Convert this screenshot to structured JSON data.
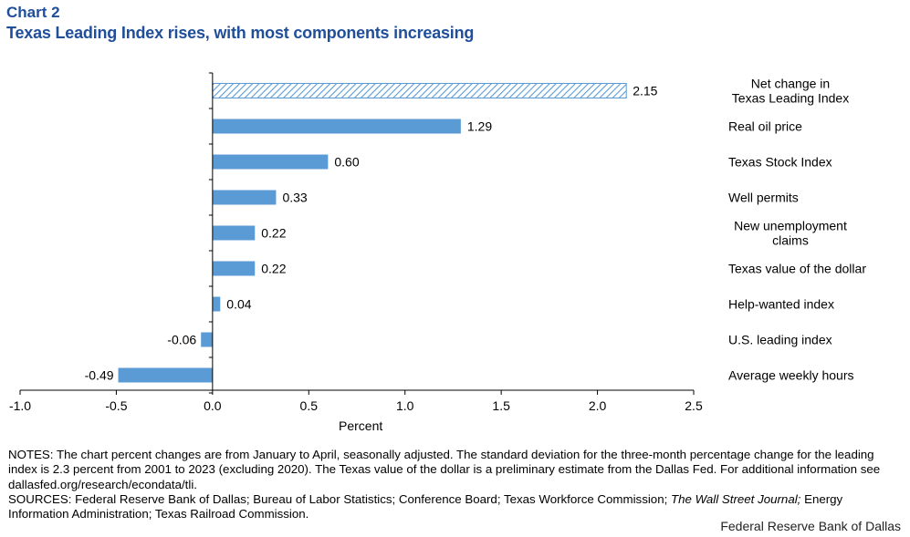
{
  "header": {
    "chart_label": "Chart 2",
    "title": "Texas Leading Index rises, with most components increasing"
  },
  "chart_data": {
    "type": "bar",
    "orientation": "horizontal",
    "categories": [
      "Net change in Texas Leading Index",
      "Real oil price",
      "Texas Stock Index",
      "Well permits",
      "New unemployment claims",
      "Texas value of the dollar",
      "Help-wanted index",
      "U.S. leading index",
      "Average weekly hours"
    ],
    "category_lines": [
      [
        "Net change in",
        "Texas Leading Index"
      ],
      [
        "Real oil price"
      ],
      [
        "Texas Stock Index"
      ],
      [
        "Well permits"
      ],
      [
        "New unemployment",
        "claims"
      ],
      [
        "Texas value of the dollar"
      ],
      [
        "Help-wanted index"
      ],
      [
        "U.S. leading index"
      ],
      [
        "Average weekly hours"
      ]
    ],
    "values": [
      2.15,
      1.29,
      0.6,
      0.33,
      0.22,
      0.22,
      0.04,
      -0.06,
      -0.49
    ],
    "value_labels": [
      "2.15",
      "1.29",
      "0.60",
      "0.33",
      "0.22",
      "0.22",
      "0.04",
      "-0.06",
      "-0.49"
    ],
    "highlight_first_bar": "hatched",
    "xlabel": "Percent",
    "xlim": [
      -1.0,
      2.5
    ],
    "xticks": [
      "-1.0",
      "-0.5",
      "0.0",
      "0.5",
      "1.0",
      "1.5",
      "2.0",
      "2.5"
    ],
    "bar_color": "#5B9BD5",
    "title_color": "#1F4E9A",
    "grid": false
  },
  "notes": {
    "notes_text": "NOTES: The chart percent changes are from January to April, seasonally adjusted. The standard deviation for the three-month percentage change for the leading index is 2.3 percent from 2001 to 2023 (excluding 2020). The Texas value of the dollar is a preliminary estimate from the Dallas Fed. For additional information see dallasfed.org/research/econdata/tli.",
    "sources_before": "SOURCES: Federal Reserve Bank of Dallas; Bureau of Labor Statistics; Conference Board; Texas Workforce Commission; ",
    "sources_italic": "The Wall Street Journal;",
    "sources_after": " Energy Information Administration; Texas Railroad Commission."
  },
  "footer": {
    "credit": "Federal Reserve Bank of Dallas"
  }
}
